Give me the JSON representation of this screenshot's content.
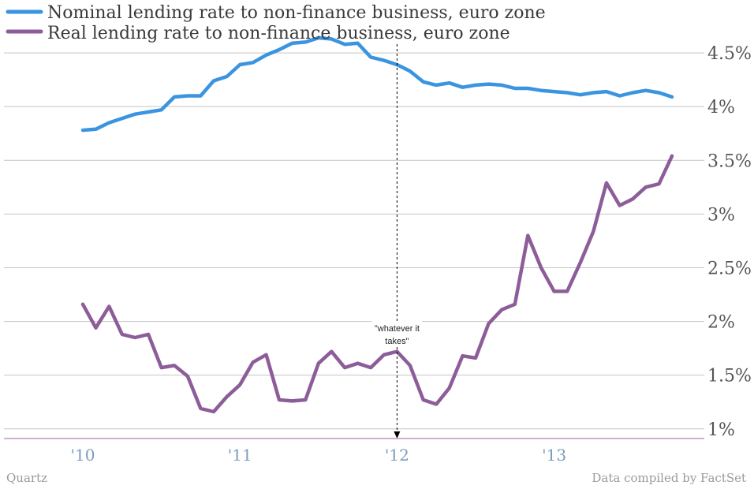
{
  "chart_data": {
    "type": "line",
    "legend_position": "top-left",
    "grid": true,
    "ylim": [
      0.9,
      4.72
    ],
    "y_ticks": [
      {
        "value": 1.0,
        "label": "1%"
      },
      {
        "value": 1.5,
        "label": "1.5%"
      },
      {
        "value": 2.0,
        "label": "2%"
      },
      {
        "value": 2.5,
        "label": "2.5%"
      },
      {
        "value": 3.0,
        "label": "3%"
      },
      {
        "value": 3.5,
        "label": "3.5%"
      },
      {
        "value": 4.0,
        "label": "4%"
      },
      {
        "value": 4.5,
        "label": "4.5%"
      }
    ],
    "x_ticks": [
      {
        "value": 2010,
        "label": "'10"
      },
      {
        "value": 2011,
        "label": "'11"
      },
      {
        "value": 2012,
        "label": "'12"
      },
      {
        "value": 2013,
        "label": "'13"
      }
    ],
    "x": [
      2010.0,
      2010.083,
      2010.167,
      2010.25,
      2010.333,
      2010.417,
      2010.5,
      2010.583,
      2010.667,
      2010.75,
      2010.833,
      2010.917,
      2011.0,
      2011.083,
      2011.167,
      2011.25,
      2011.333,
      2011.417,
      2011.5,
      2011.583,
      2011.667,
      2011.75,
      2011.833,
      2011.917,
      2012.0,
      2012.083,
      2012.167,
      2012.25,
      2012.333,
      2012.417,
      2012.5,
      2012.583,
      2012.667,
      2012.75,
      2012.833,
      2012.917,
      2013.0,
      2013.083,
      2013.167,
      2013.25,
      2013.333,
      2013.417,
      2013.5,
      2013.583,
      2013.667,
      2013.75
    ],
    "series": [
      {
        "name": "Nominal lending rate to non-finance business, euro zone",
        "color": "#3a94e0",
        "values": [
          3.78,
          3.79,
          3.85,
          3.89,
          3.93,
          3.95,
          3.97,
          4.09,
          4.1,
          4.1,
          4.24,
          4.28,
          4.39,
          4.41,
          4.48,
          4.53,
          4.59,
          4.6,
          4.64,
          4.63,
          4.58,
          4.59,
          4.46,
          4.43,
          4.39,
          4.33,
          4.23,
          4.2,
          4.22,
          4.18,
          4.2,
          4.21,
          4.2,
          4.17,
          4.17,
          4.15,
          4.14,
          4.13,
          4.11,
          4.13,
          4.14,
          4.1,
          4.13,
          4.15,
          4.13,
          4.09
        ]
      },
      {
        "name": "Real lending rate to non-finance business, euro zone",
        "color": "#8d5d99",
        "values": [
          2.16,
          1.94,
          2.14,
          1.88,
          1.85,
          1.88,
          1.57,
          1.59,
          1.49,
          1.19,
          1.16,
          1.3,
          1.41,
          1.62,
          1.69,
          1.27,
          1.26,
          1.27,
          1.61,
          1.72,
          1.57,
          1.61,
          1.57,
          1.69,
          1.72,
          1.59,
          1.27,
          1.23,
          1.38,
          1.68,
          1.66,
          1.98,
          2.11,
          2.16,
          2.8,
          2.5,
          2.28,
          2.28,
          2.55,
          2.84,
          3.29,
          3.08,
          3.14,
          3.25,
          3.28,
          3.54
        ]
      }
    ],
    "annotations": [
      {
        "text_lines": [
          "\"whatever it",
          "takes\""
        ],
        "x": 2012.0,
        "arrow_color": "#000000"
      }
    ],
    "baseline_color": "#c792c7"
  },
  "footer": {
    "left": "Quartz",
    "right": "Data compiled by FactSet"
  }
}
